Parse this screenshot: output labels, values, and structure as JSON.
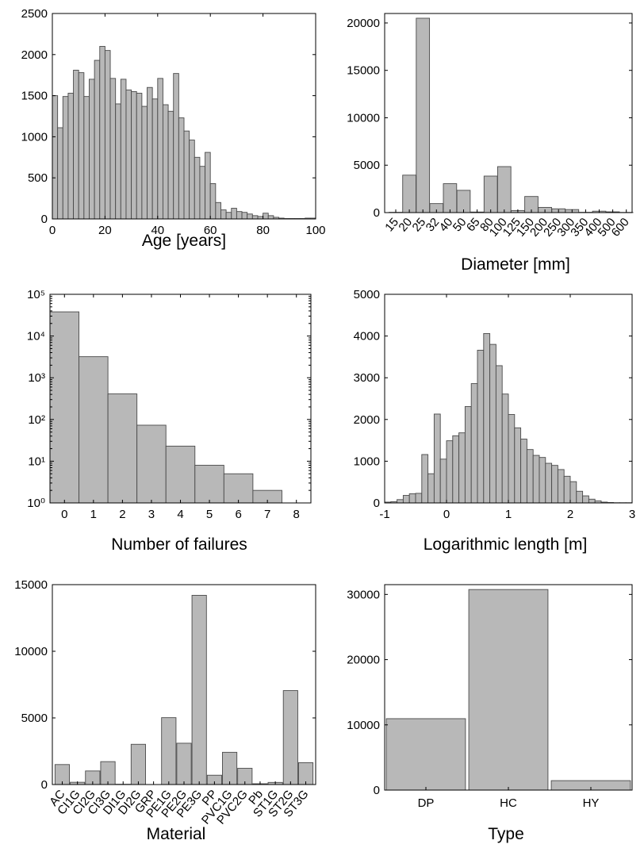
{
  "chart_data": [
    {
      "id": "age",
      "type": "bar",
      "xlabel": "Age [years]",
      "xlim": [
        0,
        100
      ],
      "ylim": [
        0,
        2500
      ],
      "xticks": [
        0,
        20,
        40,
        60,
        80,
        100
      ],
      "yticks": [
        0,
        500,
        1000,
        1500,
        2000,
        2500
      ],
      "bin_width": 2,
      "x": [
        1,
        3,
        5,
        7,
        9,
        11,
        13,
        15,
        17,
        19,
        21,
        23,
        25,
        27,
        29,
        31,
        33,
        35,
        37,
        39,
        41,
        43,
        45,
        47,
        49,
        51,
        53,
        55,
        57,
        59,
        61,
        63,
        65,
        67,
        69,
        71,
        73,
        75,
        77,
        79,
        81,
        83,
        85,
        87,
        89,
        91,
        93,
        95,
        97,
        99
      ],
      "values": [
        1500,
        1110,
        1490,
        1530,
        1810,
        1780,
        1490,
        1700,
        1930,
        2100,
        2050,
        1710,
        1400,
        1700,
        1570,
        1550,
        1530,
        1370,
        1600,
        1460,
        1710,
        1390,
        1310,
        1770,
        1230,
        1070,
        960,
        750,
        640,
        810,
        430,
        200,
        110,
        80,
        130,
        90,
        80,
        60,
        40,
        30,
        70,
        40,
        20,
        10,
        5,
        5,
        5,
        5,
        10,
        10
      ]
    },
    {
      "id": "diameter",
      "type": "bar",
      "xlabel": "Diameter [mm]",
      "ylim": [
        0,
        21000
      ],
      "yticks": [
        0,
        5000,
        10000,
        15000,
        20000
      ],
      "categories": [
        "15",
        "20",
        "25",
        "32",
        "40",
        "50",
        "65",
        "80",
        "100",
        "125",
        "150",
        "200",
        "250",
        "300",
        "350",
        "400",
        "500",
        "600"
      ],
      "values": [
        30,
        3950,
        20500,
        950,
        3050,
        2350,
        60,
        3850,
        4850,
        220,
        1700,
        550,
        400,
        320,
        30,
        150,
        80,
        20
      ]
    },
    {
      "id": "failures",
      "type": "bar",
      "xlabel": "Number of failures",
      "yscale": "log",
      "xlim": [
        -0.5,
        8.5
      ],
      "ylim": [
        1,
        100000
      ],
      "xticks": [
        0,
        1,
        2,
        3,
        4,
        5,
        6,
        7,
        8
      ],
      "ytick_labels": [
        "10⁰",
        "10¹",
        "10²",
        "10³",
        "10⁴",
        "10⁵"
      ],
      "x": [
        0,
        1,
        2,
        3,
        4,
        5,
        6,
        7,
        8
      ],
      "values": [
        38000,
        3200,
        410,
        73,
        23,
        8,
        5,
        2,
        1
      ]
    },
    {
      "id": "length",
      "type": "bar",
      "xlabel": "Logarithmic length [m]",
      "xlim": [
        -1,
        3
      ],
      "ylim": [
        0,
        5000
      ],
      "xticks": [
        -1,
        0,
        1,
        2,
        3
      ],
      "yticks": [
        0,
        1000,
        2000,
        3000,
        4000,
        5000
      ],
      "bin_width": 0.1,
      "x": [
        -0.95,
        -0.85,
        -0.75,
        -0.65,
        -0.55,
        -0.45,
        -0.35,
        -0.25,
        -0.15,
        -0.05,
        0.05,
        0.15,
        0.25,
        0.35,
        0.45,
        0.55,
        0.65,
        0.75,
        0.85,
        0.95,
        1.05,
        1.15,
        1.25,
        1.35,
        1.45,
        1.55,
        1.65,
        1.75,
        1.85,
        1.95,
        2.05,
        2.15,
        2.25,
        2.35,
        2.45,
        2.55,
        2.65,
        2.75,
        2.85,
        2.95
      ],
      "values": [
        20,
        30,
        80,
        180,
        220,
        230,
        1160,
        700,
        2130,
        1050,
        1490,
        1610,
        1680,
        2310,
        2860,
        3660,
        4060,
        3800,
        3290,
        2610,
        2120,
        1800,
        1530,
        1280,
        1140,
        1090,
        950,
        900,
        800,
        640,
        510,
        280,
        170,
        90,
        50,
        20,
        10,
        5,
        5,
        5
      ]
    },
    {
      "id": "material",
      "type": "bar",
      "xlabel": "Material",
      "ylim": [
        0,
        15000
      ],
      "yticks": [
        0,
        5000,
        10000,
        15000
      ],
      "categories": [
        "AC",
        "CI1G",
        "CI2G",
        "CI3G",
        "DI1G",
        "DI2G",
        "GRP",
        "PE1G",
        "PE2G",
        "PE3G",
        "PP",
        "PVC1G",
        "PVC2G",
        "Pb",
        "ST1G",
        "ST2G",
        "ST3G"
      ],
      "values": [
        1500,
        170,
        1020,
        1720,
        20,
        3020,
        0,
        5020,
        3100,
        14200,
        700,
        2420,
        1220,
        60,
        160,
        7050,
        1640
      ]
    },
    {
      "id": "type",
      "type": "bar",
      "xlabel": "Type",
      "ylim": [
        0,
        31500
      ],
      "yticks": [
        0,
        10000,
        20000,
        30000
      ],
      "categories": [
        "DP",
        "HC",
        "HY"
      ],
      "values": [
        10950,
        30750,
        1450
      ]
    }
  ]
}
